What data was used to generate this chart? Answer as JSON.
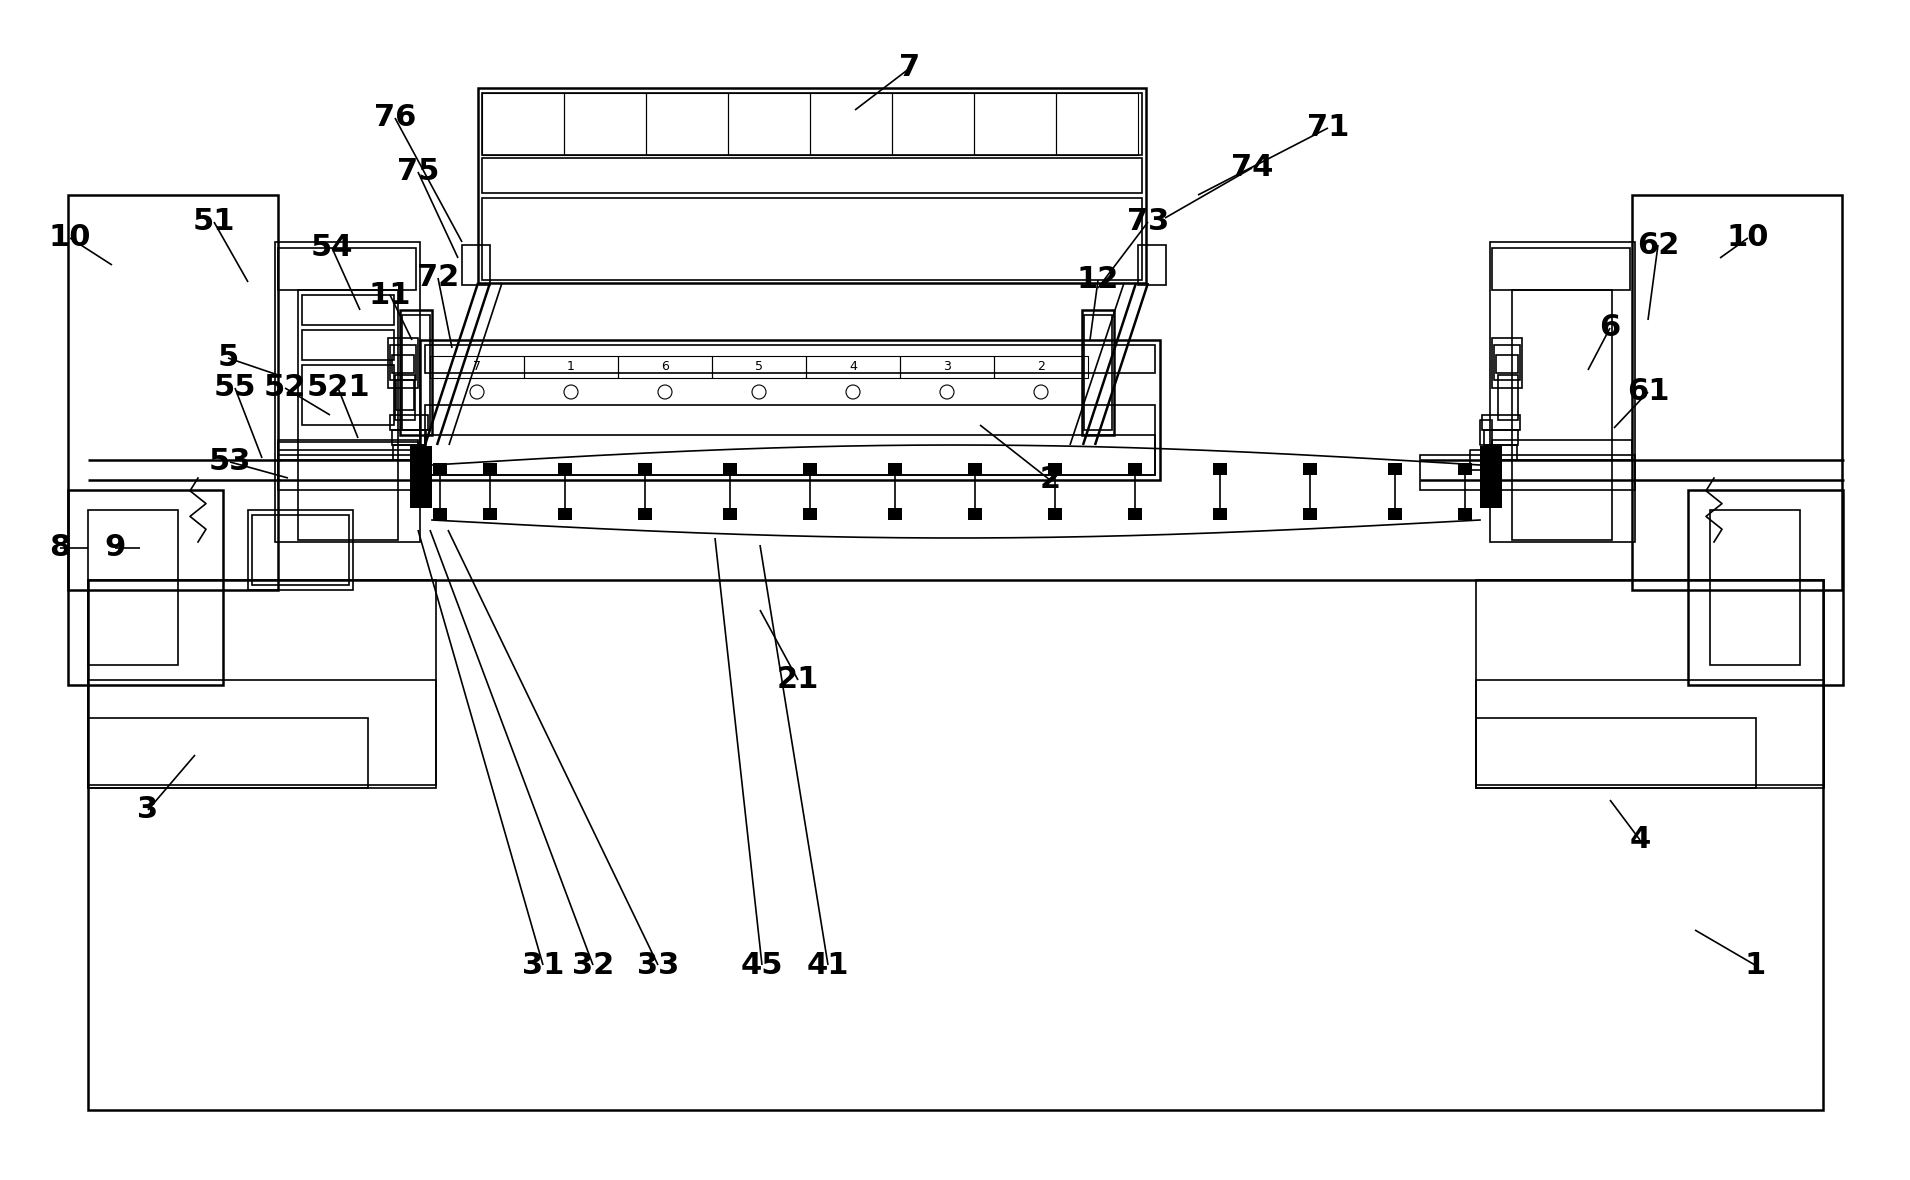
{
  "bg_color": "#ffffff",
  "lc": "#000000",
  "figsize": [
    19.1,
    11.8
  ],
  "dpi": 100,
  "leaders": [
    [
      "1",
      1755,
      965,
      1695,
      930
    ],
    [
      "2",
      1050,
      480,
      980,
      425
    ],
    [
      "3",
      148,
      810,
      195,
      755
    ],
    [
      "4",
      1640,
      840,
      1610,
      800
    ],
    [
      "5",
      228,
      358,
      278,
      375
    ],
    [
      "6",
      1610,
      328,
      1588,
      370
    ],
    [
      "7",
      910,
      68,
      855,
      110
    ],
    [
      "8",
      60,
      548,
      88,
      548
    ],
    [
      "9",
      115,
      548,
      140,
      548
    ],
    [
      "10",
      70,
      238,
      112,
      265
    ],
    [
      "10",
      1748,
      238,
      1720,
      258
    ],
    [
      "11",
      390,
      295,
      412,
      340
    ],
    [
      "12",
      1098,
      280,
      1090,
      340
    ],
    [
      "21",
      798,
      680,
      760,
      610
    ],
    [
      "31",
      543,
      965,
      418,
      530
    ],
    [
      "32",
      593,
      965,
      430,
      530
    ],
    [
      "33",
      658,
      965,
      448,
      530
    ],
    [
      "41",
      828,
      965,
      760,
      545
    ],
    [
      "45",
      762,
      965,
      715,
      538
    ],
    [
      "51",
      214,
      222,
      248,
      282
    ],
    [
      "52",
      285,
      388,
      330,
      415
    ],
    [
      "521",
      338,
      388,
      358,
      438
    ],
    [
      "53",
      230,
      462,
      288,
      478
    ],
    [
      "54",
      332,
      248,
      360,
      310
    ],
    [
      "55",
      235,
      388,
      262,
      458
    ],
    [
      "61",
      1648,
      392,
      1614,
      428
    ],
    [
      "62",
      1658,
      245,
      1648,
      320
    ],
    [
      "71",
      1328,
      128,
      1198,
      195
    ],
    [
      "72",
      438,
      278,
      452,
      348
    ],
    [
      "73",
      1148,
      222,
      1098,
      288
    ],
    [
      "74",
      1252,
      168,
      1165,
      218
    ],
    [
      "75",
      418,
      172,
      458,
      258
    ],
    [
      "76",
      395,
      118,
      462,
      242
    ]
  ]
}
